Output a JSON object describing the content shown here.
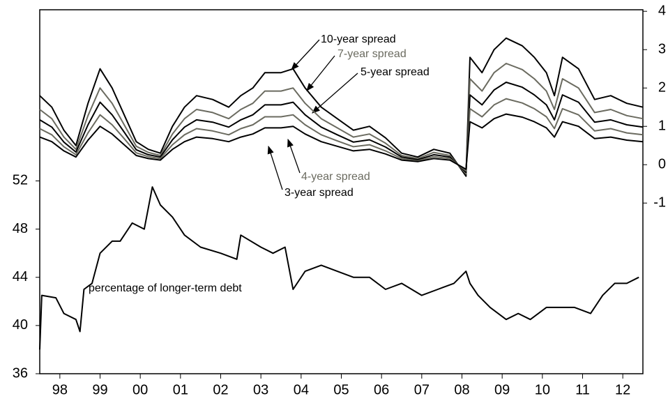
{
  "chart_data": {
    "type": "line",
    "x": [
      1998.0,
      1998.3,
      1998.6,
      1998.9,
      1999.2,
      1999.5,
      1999.8,
      2000.1,
      2000.4,
      2000.7,
      2001.0,
      2001.3,
      2001.6,
      2001.9,
      2002.3,
      2002.7,
      2003.0,
      2003.3,
      2003.6,
      2004.0,
      2004.3,
      2004.6,
      2005.0,
      2005.4,
      2005.8,
      2006.2,
      2006.6,
      2007.0,
      2007.4,
      2007.8,
      2008.2,
      2008.6,
      2008.7,
      2009.0,
      2009.3,
      2009.6,
      2010.0,
      2010.3,
      2010.6,
      2010.8,
      2011.0,
      2011.4,
      2011.8,
      2012.2,
      2012.6,
      2013.0
    ],
    "series": [
      {
        "name": "10-year spread",
        "color": "#000000",
        "axis": "y2",
        "values": [
          1.8,
          1.5,
          0.9,
          0.5,
          1.6,
          2.5,
          2.0,
          1.3,
          0.6,
          0.4,
          0.3,
          1.0,
          1.5,
          1.8,
          1.7,
          1.5,
          1.8,
          2.0,
          2.4,
          2.4,
          2.5,
          2.0,
          1.5,
          1.2,
          0.9,
          1.0,
          0.7,
          0.3,
          0.2,
          0.4,
          0.3,
          -0.3,
          2.8,
          2.4,
          3.0,
          3.3,
          3.1,
          2.8,
          2.4,
          1.8,
          2.8,
          2.5,
          1.7,
          1.8,
          1.6,
          1.5
        ]
      },
      {
        "name": "7-year spread",
        "color": "#6b6b60",
        "axis": "y2",
        "values": [
          1.44,
          1.2,
          0.72,
          0.4,
          1.28,
          2.0,
          1.6,
          1.04,
          0.48,
          0.32,
          0.24,
          0.8,
          1.2,
          1.44,
          1.36,
          1.2,
          1.44,
          1.6,
          1.92,
          1.92,
          2.0,
          1.6,
          1.2,
          0.96,
          0.72,
          0.8,
          0.56,
          0.24,
          0.16,
          0.32,
          0.24,
          -0.24,
          2.24,
          1.92,
          2.4,
          2.64,
          2.48,
          2.24,
          1.92,
          1.44,
          2.24,
          2.0,
          1.36,
          1.44,
          1.28,
          1.2
        ]
      },
      {
        "name": "5-year spread",
        "color": "#000000",
        "axis": "y2",
        "values": [
          1.17,
          0.98,
          0.59,
          0.33,
          1.04,
          1.63,
          1.3,
          0.85,
          0.39,
          0.26,
          0.2,
          0.65,
          0.98,
          1.17,
          1.11,
          0.98,
          1.17,
          1.3,
          1.56,
          1.56,
          1.63,
          1.3,
          0.98,
          0.78,
          0.59,
          0.65,
          0.46,
          0.2,
          0.13,
          0.26,
          0.2,
          -0.2,
          1.82,
          1.56,
          1.95,
          2.15,
          2.02,
          1.82,
          1.56,
          1.17,
          1.82,
          1.63,
          1.11,
          1.17,
          1.04,
          0.98
        ]
      },
      {
        "name": "4-year spread",
        "color": "#6b6b60",
        "axis": "y2",
        "values": [
          0.94,
          0.78,
          0.47,
          0.26,
          0.83,
          1.3,
          1.04,
          0.68,
          0.31,
          0.21,
          0.16,
          0.52,
          0.78,
          0.94,
          0.88,
          0.78,
          0.94,
          1.04,
          1.25,
          1.25,
          1.3,
          1.04,
          0.78,
          0.62,
          0.47,
          0.52,
          0.36,
          0.16,
          0.1,
          0.21,
          0.16,
          -0.16,
          1.46,
          1.25,
          1.56,
          1.72,
          1.61,
          1.46,
          1.25,
          0.94,
          1.46,
          1.3,
          0.88,
          0.94,
          0.83,
          0.78
        ]
      },
      {
        "name": "3-year spread",
        "color": "#000000",
        "axis": "y2",
        "values": [
          0.72,
          0.6,
          0.36,
          0.2,
          0.64,
          1.0,
          0.8,
          0.52,
          0.24,
          0.16,
          0.12,
          0.4,
          0.6,
          0.72,
          0.68,
          0.6,
          0.72,
          0.8,
          0.96,
          0.96,
          1.0,
          0.8,
          0.6,
          0.48,
          0.36,
          0.4,
          0.28,
          0.12,
          0.08,
          0.16,
          0.12,
          -0.12,
          1.12,
          0.96,
          1.2,
          1.32,
          1.24,
          1.12,
          0.96,
          0.72,
          1.12,
          1.0,
          0.68,
          0.72,
          0.64,
          0.6
        ]
      },
      {
        "name": "percentage of longer-term debt",
        "color": "#000000",
        "axis": "y",
        "x": [
          1998.0,
          1998.05,
          1998.4,
          1998.6,
          1998.9,
          1999.0,
          1999.1,
          1999.3,
          1999.5,
          1999.8,
          2000.0,
          2000.3,
          2000.6,
          2000.8,
          2001.0,
          2001.3,
          2001.6,
          2002.0,
          2002.5,
          2002.9,
          2003.0,
          2003.5,
          2003.8,
          2004.1,
          2004.3,
          2004.6,
          2005.0,
          2005.4,
          2005.8,
          2006.2,
          2006.6,
          2007.0,
          2007.5,
          2007.9,
          2008.3,
          2008.6,
          2008.7,
          2008.9,
          2009.2,
          2009.6,
          2009.9,
          2010.2,
          2010.6,
          2010.9,
          2011.3,
          2011.7,
          2012.0,
          2012.3,
          2012.6,
          2012.9
        ],
        "values": [
          38,
          42.5,
          42.3,
          41,
          40.5,
          39.5,
          43,
          43.5,
          46,
          47,
          47,
          48.5,
          48,
          51.5,
          50,
          49,
          47.5,
          46.5,
          46,
          45.5,
          47.5,
          46.5,
          46,
          46.5,
          43,
          44.5,
          45,
          44.5,
          44,
          44,
          43,
          43.5,
          42.5,
          43,
          43.5,
          44.5,
          43.5,
          42.5,
          41.5,
          40.5,
          41,
          40.5,
          41.5,
          41.5,
          41.5,
          41,
          42.5,
          43.5,
          43.5,
          44
        ]
      }
    ],
    "xlim": [
      1998,
      2013
    ],
    "xticks": [
      {
        "value": 1998.5,
        "label": "98"
      },
      {
        "value": 1999.5,
        "label": "99"
      },
      {
        "value": 2000.5,
        "label": "00"
      },
      {
        "value": 2001.5,
        "label": "01"
      },
      {
        "value": 2002.5,
        "label": "02"
      },
      {
        "value": 2003.5,
        "label": "03"
      },
      {
        "value": 2004.5,
        "label": "04"
      },
      {
        "value": 2005.5,
        "label": "05"
      },
      {
        "value": 2006.5,
        "label": "06"
      },
      {
        "value": 2007.5,
        "label": "07"
      },
      {
        "value": 2008.5,
        "label": "08"
      },
      {
        "value": 2009.5,
        "label": "09"
      },
      {
        "value": 2010.5,
        "label": "10"
      },
      {
        "value": 2011.5,
        "label": "11"
      },
      {
        "value": 2012.5,
        "label": "12"
      }
    ],
    "ylim": [
      36,
      66.2
    ],
    "yticks": [
      36,
      40,
      44,
      48,
      52
    ],
    "y2lim": [
      -5.45,
      4.04
    ],
    "y2ticks": [
      -1,
      0,
      1,
      2,
      3,
      4
    ]
  }
}
